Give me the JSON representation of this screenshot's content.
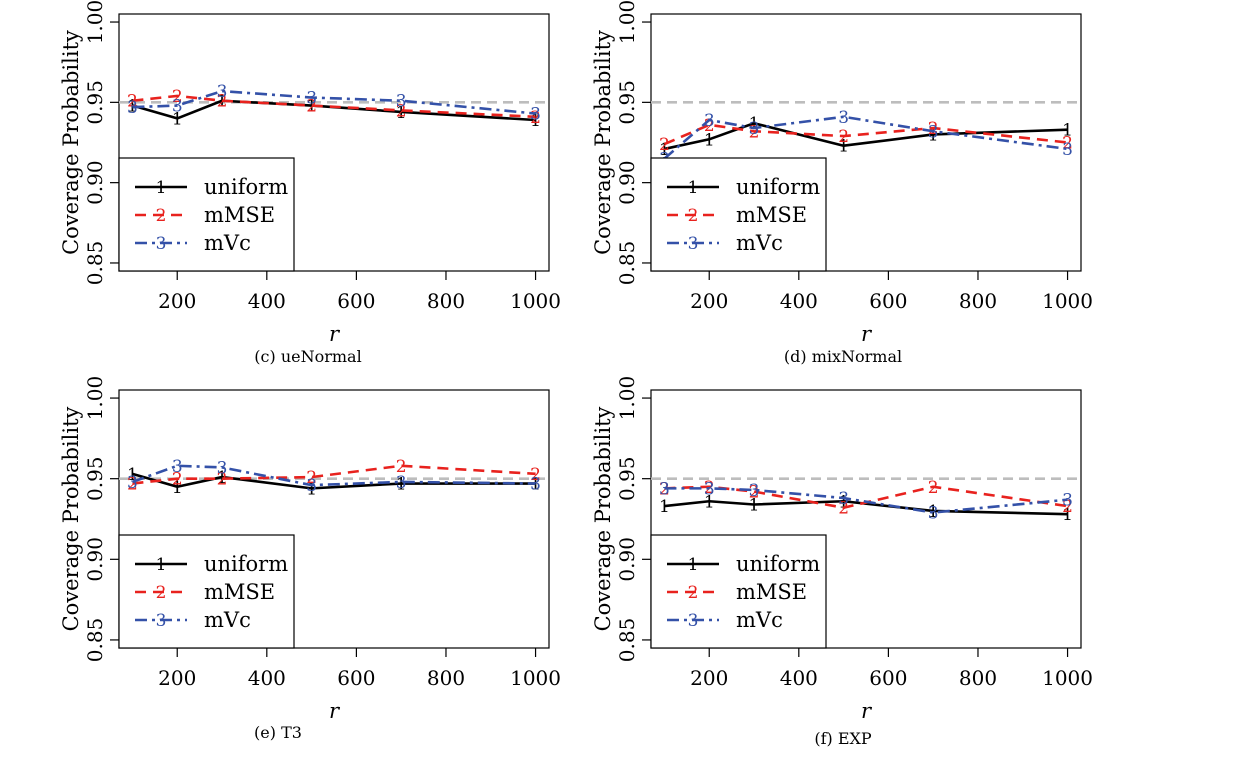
{
  "chart_data": [
    {
      "type": "line",
      "caption": "(c) ueNormal",
      "xlabel": "r",
      "ylabel": "Coverage Probability",
      "x": [
        100,
        200,
        300,
        500,
        700,
        1000
      ],
      "xticks": [
        200,
        400,
        600,
        800,
        1000
      ],
      "xlim": [
        70,
        1030
      ],
      "yticks": [
        "0.85",
        "0.90",
        "0.95",
        "1.00"
      ],
      "ylim": [
        0.845,
        1.005
      ],
      "reference_line": 0.95,
      "legend_position": "bottom-left",
      "series": [
        {
          "name": "uniform",
          "marker": "1",
          "values": [
            0.948,
            0.94,
            0.951,
            0.948,
            0.944,
            0.939
          ]
        },
        {
          "name": "mMSE",
          "marker": "2",
          "values": [
            0.951,
            0.954,
            0.951,
            0.948,
            0.945,
            0.941
          ]
        },
        {
          "name": "mVc",
          "marker": "3",
          "values": [
            0.947,
            0.948,
            0.957,
            0.953,
            0.951,
            0.943
          ]
        }
      ]
    },
    {
      "type": "line",
      "caption": "(d) mixNormal",
      "xlabel": "r",
      "ylabel": "Coverage Probability",
      "x": [
        100,
        200,
        300,
        500,
        700,
        1000
      ],
      "xticks": [
        200,
        400,
        600,
        800,
        1000
      ],
      "xlim": [
        70,
        1030
      ],
      "yticks": [
        "0.85",
        "0.90",
        "0.95",
        "1.00"
      ],
      "ylim": [
        0.845,
        1.005
      ],
      "reference_line": 0.95,
      "legend_position": "bottom-left",
      "series": [
        {
          "name": "uniform",
          "marker": "1",
          "values": [
            0.921,
            0.927,
            0.937,
            0.923,
            0.93,
            0.933
          ]
        },
        {
          "name": "mMSE",
          "marker": "2",
          "values": [
            0.924,
            0.936,
            0.932,
            0.929,
            0.934,
            0.925
          ]
        },
        {
          "name": "mVc",
          "marker": "3",
          "values": [
            0.915,
            0.939,
            0.934,
            0.941,
            0.932,
            0.921
          ]
        }
      ]
    },
    {
      "type": "line",
      "caption": "(e) T3",
      "xlabel": "r",
      "ylabel": "Coverage Probability",
      "x": [
        100,
        200,
        300,
        500,
        700,
        1000
      ],
      "xticks": [
        200,
        400,
        600,
        800,
        1000
      ],
      "xlim": [
        70,
        1030
      ],
      "yticks": [
        "0.85",
        "0.90",
        "0.95",
        "1.00"
      ],
      "ylim": [
        0.845,
        1.005
      ],
      "reference_line": 0.95,
      "legend_position": "bottom-left",
      "series": [
        {
          "name": "uniform",
          "marker": "1",
          "values": [
            0.953,
            0.945,
            0.951,
            0.944,
            0.947,
            0.947
          ]
        },
        {
          "name": "mMSE",
          "marker": "2",
          "values": [
            0.947,
            0.95,
            0.95,
            0.951,
            0.958,
            0.953
          ]
        },
        {
          "name": "mVc",
          "marker": "3",
          "values": [
            0.948,
            0.958,
            0.957,
            0.946,
            0.948,
            0.947
          ]
        }
      ]
    },
    {
      "type": "line",
      "caption": "(f) EXP",
      "xlabel": "r",
      "ylabel": "Coverage Probability",
      "x": [
        100,
        200,
        300,
        500,
        700,
        1000
      ],
      "xticks": [
        200,
        400,
        600,
        800,
        1000
      ],
      "xlim": [
        70,
        1030
      ],
      "yticks": [
        "0.85",
        "0.90",
        "0.95",
        "1.00"
      ],
      "ylim": [
        0.845,
        1.005
      ],
      "reference_line": 0.95,
      "legend_position": "bottom-left",
      "series": [
        {
          "name": "uniform",
          "marker": "1",
          "values": [
            0.933,
            0.936,
            0.934,
            0.936,
            0.93,
            0.928
          ]
        },
        {
          "name": "mMSE",
          "marker": "2",
          "values": [
            0.944,
            0.945,
            0.942,
            0.932,
            0.945,
            0.933
          ]
        },
        {
          "name": "mVc",
          "marker": "3",
          "values": [
            0.944,
            0.944,
            0.943,
            0.938,
            0.929,
            0.937
          ]
        }
      ]
    }
  ],
  "styles": {
    "series_colors": [
      "#000000",
      "#e8221e",
      "#3451a8"
    ],
    "reference_line_color": "#bdbdbd"
  }
}
